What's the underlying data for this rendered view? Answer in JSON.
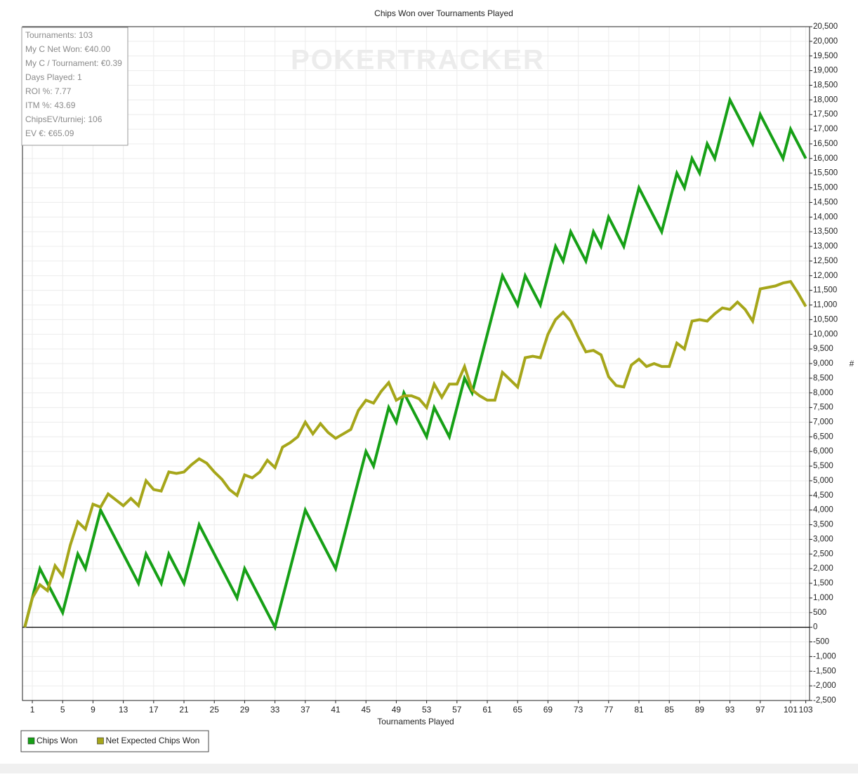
{
  "chart_data": {
    "type": "line",
    "title": "Chips Won over Tournaments Played",
    "watermark": "POKERTRACKER",
    "xlabel": "Tournaments Played",
    "ylabel": "#",
    "stats": [
      "Tournaments: 103",
      "My C Net Won: €40.00",
      "My C / Tournament: €0.39",
      "Days Played: 1",
      "ROI %: 7.77",
      "ITM %: 43.69",
      "ChipsEV/turniej: 106",
      "EV €: €65.09"
    ],
    "x": [
      0,
      1,
      2,
      3,
      4,
      5,
      6,
      7,
      8,
      9,
      10,
      11,
      12,
      13,
      14,
      15,
      16,
      17,
      18,
      19,
      20,
      21,
      22,
      23,
      24,
      25,
      26,
      27,
      28,
      29,
      30,
      31,
      32,
      33,
      34,
      35,
      36,
      37,
      38,
      39,
      40,
      41,
      42,
      43,
      44,
      45,
      46,
      47,
      48,
      49,
      50,
      51,
      52,
      53,
      54,
      55,
      56,
      57,
      58,
      59,
      60,
      61,
      62,
      63,
      64,
      65,
      66,
      67,
      68,
      69,
      70,
      71,
      72,
      73,
      74,
      75,
      76,
      77,
      78,
      79,
      80,
      81,
      82,
      83,
      84,
      85,
      86,
      87,
      88,
      89,
      90,
      91,
      92,
      93,
      94,
      95,
      96,
      97,
      98,
      99,
      100,
      101,
      102,
      103
    ],
    "series": [
      {
        "name": "Chips Won",
        "color": "#16a016",
        "values": [
          0,
          1000,
          2000,
          1500,
          1000,
          500,
          1500,
          2500,
          2000,
          3000,
          4000,
          3500,
          3000,
          2500,
          2000,
          1500,
          2500,
          2000,
          1500,
          2500,
          2000,
          1500,
          2500,
          3500,
          3000,
          2500,
          2000,
          1500,
          1000,
          2000,
          1500,
          1000,
          500,
          0,
          1000,
          2000,
          3000,
          4000,
          3500,
          3000,
          2500,
          2000,
          3000,
          4000,
          5000,
          6000,
          5500,
          6500,
          7500,
          7000,
          8000,
          7500,
          7000,
          6500,
          7500,
          7000,
          6500,
          7500,
          8500,
          8000,
          9000,
          10000,
          11000,
          12000,
          11500,
          11000,
          12000,
          11500,
          11000,
          12000,
          13000,
          12500,
          13500,
          13000,
          12500,
          13500,
          13000,
          14000,
          13500,
          13000,
          14000,
          15000,
          14500,
          14000,
          13500,
          14500,
          15500,
          15000,
          16000,
          15500,
          16500,
          16000,
          17000,
          18000,
          17500,
          17000,
          16500,
          17500,
          17000,
          16500,
          16000,
          17000,
          16500,
          16000
        ]
      },
      {
        "name": "Net Expected Chips Won",
        "color": "#a6a61a",
        "values": [
          0,
          1000,
          1450,
          1250,
          2100,
          1750,
          2800,
          3600,
          3350,
          4200,
          4100,
          4550,
          4350,
          4150,
          4400,
          4150,
          5000,
          4700,
          4650,
          5300,
          5250,
          5300,
          5550,
          5750,
          5600,
          5300,
          5050,
          4700,
          4500,
          5200,
          5100,
          5300,
          5700,
          5450,
          6150,
          6300,
          6500,
          7000,
          6600,
          6950,
          6650,
          6450,
          6600,
          6750,
          7400,
          7750,
          7650,
          8050,
          8350,
          7750,
          7900,
          7900,
          7800,
          7500,
          8300,
          7850,
          8300,
          8300,
          8900,
          8100,
          7900,
          7750,
          7750,
          8700,
          8450,
          8200,
          9200,
          9250,
          9200,
          10000,
          10500,
          10750,
          10450,
          9900,
          9400,
          9450,
          9300,
          8550,
          8250,
          8200,
          8950,
          9150,
          8900,
          9000,
          8900,
          8900,
          9700,
          9500,
          10450,
          10500,
          10450,
          10700,
          10900,
          10850,
          11100,
          10850,
          10450,
          11550,
          11600,
          11650,
          11750,
          11800,
          11400,
          10950
        ]
      }
    ],
    "xlim": [
      -0.3,
      103.5
    ],
    "xticks": [
      1,
      5,
      9,
      13,
      17,
      21,
      25,
      29,
      33,
      37,
      41,
      45,
      49,
      53,
      57,
      61,
      65,
      69,
      73,
      77,
      81,
      85,
      89,
      93,
      97,
      101,
      103
    ],
    "ylim": [
      -2500,
      20500
    ],
    "yticks": [
      {
        "value": -2500,
        "label": "-2,500"
      },
      {
        "value": -2000,
        "label": "-2,000"
      },
      {
        "value": -1500,
        "label": "-1,500"
      },
      {
        "value": -1000,
        "label": "-1,000"
      },
      -500,
      0,
      500,
      {
        "value": 1000,
        "label": "1,000"
      },
      {
        "value": 1500,
        "label": "1,500"
      },
      {
        "value": 2000,
        "label": "2,000"
      },
      {
        "value": 2500,
        "label": "2,500"
      },
      {
        "value": 3000,
        "label": "3,000"
      },
      {
        "value": 3500,
        "label": "3,500"
      },
      {
        "value": 4000,
        "label": "4,000"
      },
      {
        "value": 4500,
        "label": "4,500"
      },
      {
        "value": 5000,
        "label": "5,000"
      },
      {
        "value": 5500,
        "label": "5,500"
      },
      {
        "value": 6000,
        "label": "6,000"
      },
      {
        "value": 6500,
        "label": "6,500"
      },
      {
        "value": 7000,
        "label": "7,000"
      },
      {
        "value": 7500,
        "label": "7,500"
      },
      {
        "value": 8000,
        "label": "8,000"
      },
      {
        "value": 8500,
        "label": "8,500"
      },
      {
        "value": 9000,
        "label": "9,000"
      },
      {
        "value": 9500,
        "label": "9,500"
      },
      {
        "value": 10000,
        "label": "10,000"
      },
      {
        "value": 10500,
        "label": "10,500"
      },
      {
        "value": 11000,
        "label": "11,000"
      },
      {
        "value": 11500,
        "label": "11,500"
      },
      {
        "value": 12000,
        "label": "12,000"
      },
      {
        "value": 12500,
        "label": "12,500"
      },
      {
        "value": 13000,
        "label": "13,000"
      },
      {
        "value": 13500,
        "label": "13,500"
      },
      {
        "value": 14000,
        "label": "14,000"
      },
      {
        "value": 14500,
        "label": "14,500"
      },
      {
        "value": 15000,
        "label": "15,000"
      },
      {
        "value": 15500,
        "label": "15,500"
      },
      {
        "value": 16000,
        "label": "16,000"
      },
      {
        "value": 16500,
        "label": "16,500"
      },
      {
        "value": 17000,
        "label": "17,000"
      },
      {
        "value": 17500,
        "label": "17,500"
      },
      {
        "value": 18000,
        "label": "18,000"
      },
      {
        "value": 18500,
        "label": "18,500"
      },
      {
        "value": 19000,
        "label": "19,000"
      },
      {
        "value": 19500,
        "label": "19,500"
      },
      {
        "value": 20000,
        "label": "20,000"
      },
      {
        "value": 20500,
        "label": "20,500"
      }
    ],
    "grid": true,
    "legend": "bottom-left"
  }
}
